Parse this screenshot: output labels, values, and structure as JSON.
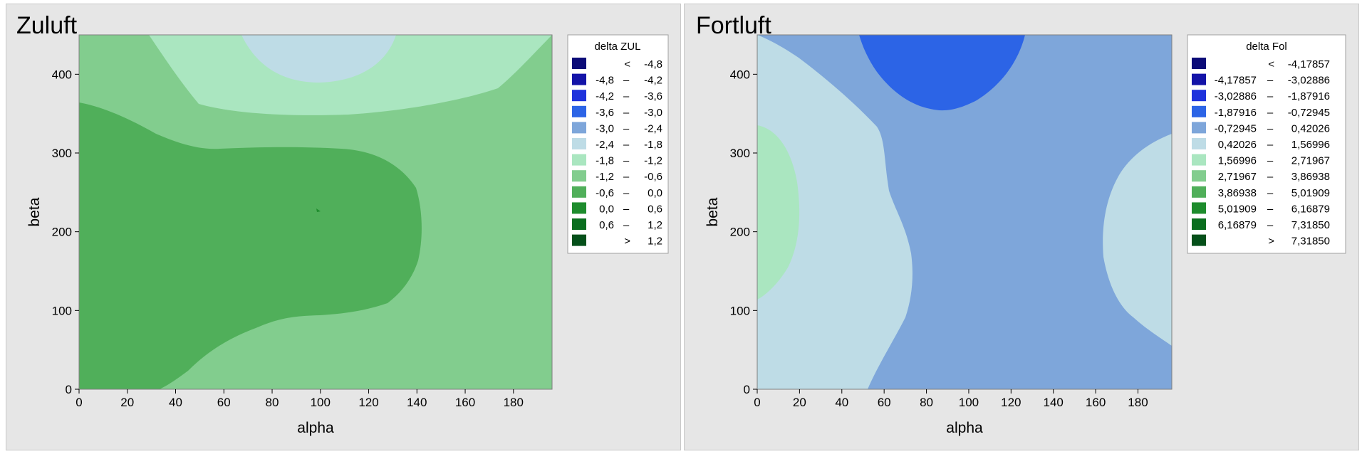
{
  "chart_data": [
    {
      "type": "contour",
      "title": "Zuluft",
      "xlabel": "alpha",
      "ylabel": "beta",
      "xlim": [
        0,
        196
      ],
      "ylim": [
        0,
        450
      ],
      "xticks": [
        "0",
        "20",
        "40",
        "60",
        "80",
        "100",
        "120",
        "140",
        "160",
        "180"
      ],
      "yticks": [
        "0",
        "100",
        "200",
        "300",
        "400"
      ],
      "legend": {
        "title": "delta ZUL",
        "placement": "right",
        "entries": [
          {
            "lo": "<",
            "hi": "-4,8",
            "color": "#0c0c78"
          },
          {
            "lo": "-4,8",
            "hi": "-4,2",
            "color": "#1414a8"
          },
          {
            "lo": "-4,2",
            "hi": "-3,6",
            "color": "#1e32dc"
          },
          {
            "lo": "-3,6",
            "hi": "-3,0",
            "color": "#2c64e6"
          },
          {
            "lo": "-3,0",
            "hi": "-2,4",
            "color": "#7ea6da"
          },
          {
            "lo": "-2,4",
            "hi": "-1,8",
            "color": "#bedce6"
          },
          {
            "lo": "-1,8",
            "hi": "-1,2",
            "color": "#aae6c0"
          },
          {
            "lo": "-1,2",
            "hi": "-0,6",
            "color": "#82cd8e"
          },
          {
            "lo": "-0,6",
            "hi": "0,0",
            "color": "#50af5a"
          },
          {
            "lo": "0,0",
            "hi": "0,6",
            "color": "#1e8c2d"
          },
          {
            "lo": "0,6",
            "hi": "1,2",
            "color": "#0a6e1e"
          },
          {
            "lo": ">",
            "hi": "1,2",
            "color": "#05501a"
          }
        ]
      }
    },
    {
      "type": "contour",
      "title": "Fortluft",
      "xlabel": "alpha",
      "ylabel": "beta",
      "xlim": [
        0,
        196
      ],
      "ylim": [
        0,
        450
      ],
      "xticks": [
        "0",
        "20",
        "40",
        "60",
        "80",
        "100",
        "120",
        "140",
        "160",
        "180"
      ],
      "yticks": [
        "0",
        "100",
        "200",
        "300",
        "400"
      ],
      "legend": {
        "title": "delta Fol",
        "placement": "right",
        "entries": [
          {
            "lo": "<",
            "hi": "-4,17857",
            "color": "#0c0c78"
          },
          {
            "lo": "-4,17857",
            "hi": "-3,02886",
            "color": "#1414a8"
          },
          {
            "lo": "-3,02886",
            "hi": "-1,87916",
            "color": "#1e32dc"
          },
          {
            "lo": "-1,87916",
            "hi": "-0,72945",
            "color": "#2c64e6"
          },
          {
            "lo": "-0,72945",
            "hi": "0,42026",
            "color": "#7ea6da"
          },
          {
            "lo": "0,42026",
            "hi": "1,56996",
            "color": "#bedce6"
          },
          {
            "lo": "1,56996",
            "hi": "2,71967",
            "color": "#aae6c0"
          },
          {
            "lo": "2,71967",
            "hi": "3,86938",
            "color": "#82cd8e"
          },
          {
            "lo": "3,86938",
            "hi": "5,01909",
            "color": "#50af5a"
          },
          {
            "lo": "5,01909",
            "hi": "6,16879",
            "color": "#1e8c2d"
          },
          {
            "lo": "6,16879",
            "hi": "7,31850",
            "color": "#0a6e1e"
          },
          {
            "lo": ">",
            "hi": "7,31850",
            "color": "#05501a"
          }
        ]
      }
    }
  ]
}
